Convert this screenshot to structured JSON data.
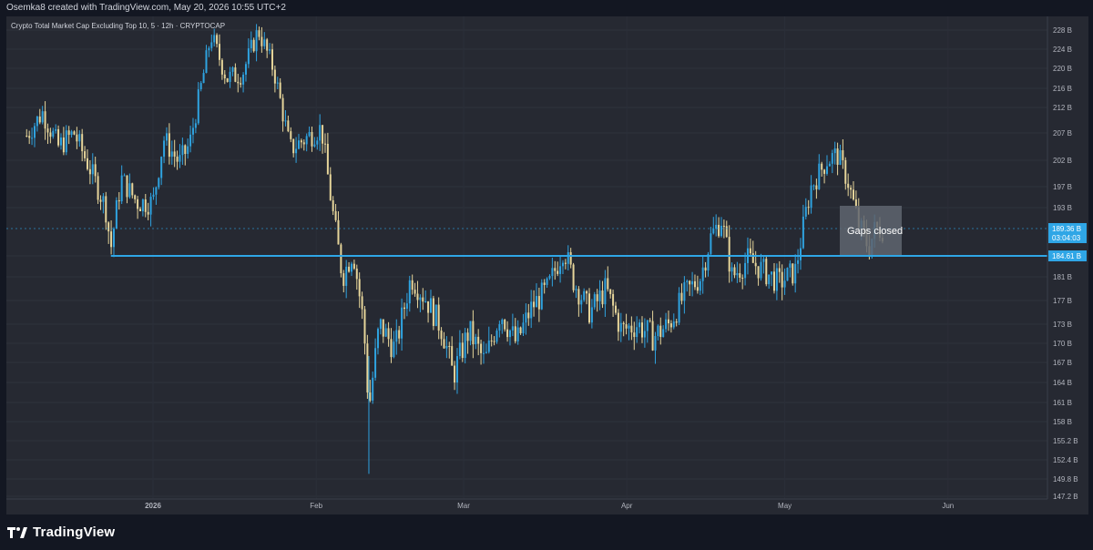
{
  "attribution": "Osemka8 created with TradingView.com, May 20, 2026 10:55 UTC+2",
  "brand": {
    "name": "TradingView",
    "icon": "tradingview-logo-icon"
  },
  "colors": {
    "background": "#262932",
    "up": "#2fa3e0",
    "down": "#e6d59a",
    "support": "#2fa6e6",
    "label_bg": "#2fa6e6"
  },
  "chart_data": {
    "type": "candlestick",
    "title": "Crypto Total Market Cap Excluding Top 10, 5 · 12h · CRYPTOCAP",
    "y_unit": "B",
    "y_ticks": [
      "228 B",
      "224 B",
      "220 B",
      "216 B",
      "212 B",
      "207 B",
      "202 B",
      "197 B",
      "193 B",
      "184.61 B",
      "181 B",
      "177 B",
      "173 B",
      "170 B",
      "167 B",
      "164 B",
      "161 B",
      "158 B",
      "155.2 B",
      "152.4 B",
      "149.8 B",
      "147.2 B"
    ],
    "x_ticks": [
      "2026",
      "Feb",
      "Mar",
      "Apr",
      "May",
      "Jun"
    ],
    "last_price": {
      "value": "189.36 B",
      "countdown": "03:04:03"
    },
    "support_level": {
      "value": 184.61,
      "label": "184.61 B"
    },
    "annotation": {
      "text": "Gaps closed"
    },
    "close_path": [
      {
        "date": "2025-12-08",
        "close": 206.5
      },
      {
        "date": "2025-12-11",
        "close": 211.0
      },
      {
        "date": "2025-12-14",
        "close": 204.5
      },
      {
        "date": "2025-12-17",
        "close": 207.0
      },
      {
        "date": "2025-12-20",
        "close": 200.5
      },
      {
        "date": "2025-12-23",
        "close": 193.0
      },
      {
        "date": "2025-12-24",
        "close": 186.0
      },
      {
        "date": "2025-12-26",
        "close": 198.5
      },
      {
        "date": "2025-12-29",
        "close": 194.0
      },
      {
        "date": "2026-01-01",
        "close": 194.0
      },
      {
        "date": "2026-01-03",
        "close": 206.0
      },
      {
        "date": "2026-01-06",
        "close": 201.5
      },
      {
        "date": "2026-01-08",
        "close": 205.0
      },
      {
        "date": "2026-01-11",
        "close": 221.0
      },
      {
        "date": "2026-01-12",
        "close": 227.0
      },
      {
        "date": "2026-01-15",
        "close": 218.0
      },
      {
        "date": "2026-01-18",
        "close": 219.0
      },
      {
        "date": "2026-01-21",
        "close": 228.0
      },
      {
        "date": "2026-01-24",
        "close": 219.5
      },
      {
        "date": "2026-01-27",
        "close": 204.0
      },
      {
        "date": "2026-01-30",
        "close": 206.0
      },
      {
        "date": "2026-02-02",
        "close": 208.0
      },
      {
        "date": "2026-02-04",
        "close": 193.0
      },
      {
        "date": "2026-02-06",
        "close": 181.0
      },
      {
        "date": "2026-02-08",
        "close": 185.5
      },
      {
        "date": "2026-02-10",
        "close": 173.0
      },
      {
        "date": "2026-02-11",
        "close": 160.0
      },
      {
        "date": "2026-02-13",
        "close": 173.0
      },
      {
        "date": "2026-02-16",
        "close": 169.0
      },
      {
        "date": "2026-02-19",
        "close": 181.0
      },
      {
        "date": "2026-02-22",
        "close": 177.0
      },
      {
        "date": "2026-02-25",
        "close": 172.0
      },
      {
        "date": "2026-02-27",
        "close": 165.0
      },
      {
        "date": "2026-03-02",
        "close": 172.0
      },
      {
        "date": "2026-03-05",
        "close": 167.0
      },
      {
        "date": "2026-03-08",
        "close": 175.0
      },
      {
        "date": "2026-03-11",
        "close": 170.0
      },
      {
        "date": "2026-03-14",
        "close": 176.0
      },
      {
        "date": "2026-03-17",
        "close": 179.0
      },
      {
        "date": "2026-03-20",
        "close": 186.0
      },
      {
        "date": "2026-03-22",
        "close": 180.0
      },
      {
        "date": "2026-03-25",
        "close": 175.0
      },
      {
        "date": "2026-03-28",
        "close": 179.0
      },
      {
        "date": "2026-03-31",
        "close": 172.0
      },
      {
        "date": "2026-04-03",
        "close": 173.0
      },
      {
        "date": "2026-04-06",
        "close": 171.0
      },
      {
        "date": "2026-04-09",
        "close": 173.0
      },
      {
        "date": "2026-04-12",
        "close": 178.0
      },
      {
        "date": "2026-04-15",
        "close": 181.0
      },
      {
        "date": "2026-04-17",
        "close": 188.0
      },
      {
        "date": "2026-04-19",
        "close": 191.0
      },
      {
        "date": "2026-04-21",
        "close": 181.0
      },
      {
        "date": "2026-04-24",
        "close": 184.0
      },
      {
        "date": "2026-04-27",
        "close": 182.0
      },
      {
        "date": "2026-04-30",
        "close": 180.0
      },
      {
        "date": "2026-05-03",
        "close": 182.0
      },
      {
        "date": "2026-05-06",
        "close": 197.0
      },
      {
        "date": "2026-05-09",
        "close": 202.0
      },
      {
        "date": "2026-05-11",
        "close": 203.0
      },
      {
        "date": "2026-05-13",
        "close": 198.0
      },
      {
        "date": "2026-05-15",
        "close": 190.0
      },
      {
        "date": "2026-05-17",
        "close": 186.0
      },
      {
        "date": "2026-05-18",
        "close": 189.0
      },
      {
        "date": "2026-05-20",
        "close": 189.36
      }
    ]
  }
}
